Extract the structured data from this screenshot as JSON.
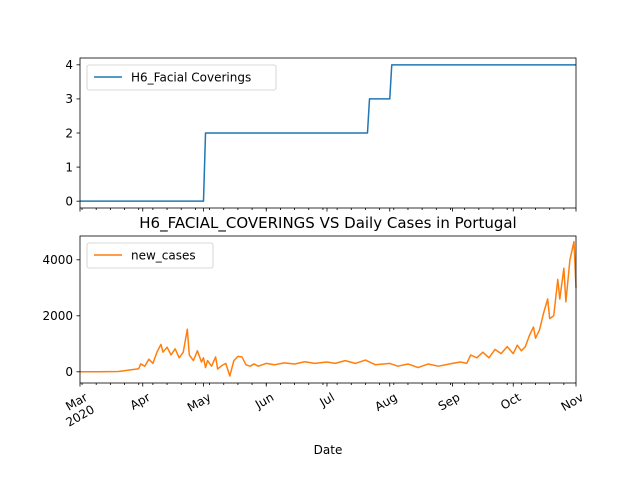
{
  "chart_data": [
    {
      "type": "line",
      "title": "",
      "xlabel": "",
      "ylabel": "",
      "x_range": [
        "2020-03-01",
        "2020-11-01"
      ],
      "ylim": [
        -0.2,
        4.2
      ],
      "yticks": [
        0,
        1,
        2,
        3,
        4
      ],
      "yticklabels": [
        "0",
        "1",
        "2",
        "3",
        "4"
      ],
      "legend_position": "upper left",
      "series": [
        {
          "name": "H6_Facial Coverings",
          "color": "#1f77b4",
          "step": true,
          "points": [
            [
              "2020-03-01",
              0
            ],
            [
              "2020-05-01",
              0
            ],
            [
              "2020-05-02",
              2
            ],
            [
              "2020-07-21",
              2
            ],
            [
              "2020-07-22",
              3
            ],
            [
              "2020-08-01",
              3
            ],
            [
              "2020-08-02",
              4
            ],
            [
              "2020-11-01",
              4
            ]
          ]
        }
      ]
    },
    {
      "type": "line",
      "title": "H6_FACIAL_COVERINGS VS Daily Cases in Portugal",
      "xlabel": "Date",
      "ylabel": "",
      "x_range": [
        "2020-03-01",
        "2020-11-01"
      ],
      "ylim": [
        -400,
        4850
      ],
      "yticks": [
        0,
        2000,
        4000
      ],
      "yticklabels": [
        "0",
        "2000",
        "4000"
      ],
      "legend_position": "upper left",
      "xtick_labels": [
        {
          "date": "2020-03-01",
          "label": "Mar",
          "sublabel": "2020"
        },
        {
          "date": "2020-04-01",
          "label": "Apr",
          "sublabel": ""
        },
        {
          "date": "2020-05-01",
          "label": "May",
          "sublabel": ""
        },
        {
          "date": "2020-06-01",
          "label": "Jun",
          "sublabel": ""
        },
        {
          "date": "2020-07-01",
          "label": "Jul",
          "sublabel": ""
        },
        {
          "date": "2020-08-01",
          "label": "Aug",
          "sublabel": ""
        },
        {
          "date": "2020-09-01",
          "label": "Sep",
          "sublabel": ""
        },
        {
          "date": "2020-10-01",
          "label": "Oct",
          "sublabel": ""
        },
        {
          "date": "2020-11-01",
          "label": "Nov",
          "sublabel": ""
        }
      ],
      "series": [
        {
          "name": "new_cases",
          "color": "#ff7f0e",
          "points": [
            [
              "2020-03-01",
              0
            ],
            [
              "2020-03-10",
              0
            ],
            [
              "2020-03-20",
              10
            ],
            [
              "2020-03-25",
              60
            ],
            [
              "2020-03-30",
              110
            ],
            [
              "2020-03-31",
              280
            ],
            [
              "2020-04-02",
              200
            ],
            [
              "2020-04-04",
              450
            ],
            [
              "2020-04-06",
              300
            ],
            [
              "2020-04-08",
              700
            ],
            [
              "2020-04-10",
              980
            ],
            [
              "2020-04-11",
              700
            ],
            [
              "2020-04-13",
              880
            ],
            [
              "2020-04-15",
              600
            ],
            [
              "2020-04-17",
              820
            ],
            [
              "2020-04-19",
              500
            ],
            [
              "2020-04-21",
              700
            ],
            [
              "2020-04-23",
              1520
            ],
            [
              "2020-04-24",
              600
            ],
            [
              "2020-04-26",
              400
            ],
            [
              "2020-04-28",
              750
            ],
            [
              "2020-04-30",
              350
            ],
            [
              "2020-05-01",
              500
            ],
            [
              "2020-05-02",
              150
            ],
            [
              "2020-05-03",
              400
            ],
            [
              "2020-05-05",
              200
            ],
            [
              "2020-05-07",
              530
            ],
            [
              "2020-05-08",
              100
            ],
            [
              "2020-05-10",
              220
            ],
            [
              "2020-05-12",
              300
            ],
            [
              "2020-05-14",
              -150
            ],
            [
              "2020-05-16",
              400
            ],
            [
              "2020-05-18",
              550
            ],
            [
              "2020-05-20",
              530
            ],
            [
              "2020-05-22",
              250
            ],
            [
              "2020-05-24",
              200
            ],
            [
              "2020-05-26",
              280
            ],
            [
              "2020-05-28",
              200
            ],
            [
              "2020-06-01",
              300
            ],
            [
              "2020-06-05",
              250
            ],
            [
              "2020-06-10",
              320
            ],
            [
              "2020-06-15",
              280
            ],
            [
              "2020-06-20",
              360
            ],
            [
              "2020-06-25",
              300
            ],
            [
              "2020-07-01",
              350
            ],
            [
              "2020-07-05",
              300
            ],
            [
              "2020-07-10",
              400
            ],
            [
              "2020-07-15",
              300
            ],
            [
              "2020-07-20",
              420
            ],
            [
              "2020-07-25",
              250
            ],
            [
              "2020-08-01",
              300
            ],
            [
              "2020-08-05",
              200
            ],
            [
              "2020-08-10",
              280
            ],
            [
              "2020-08-15",
              150
            ],
            [
              "2020-08-20",
              280
            ],
            [
              "2020-08-25",
              200
            ],
            [
              "2020-09-01",
              300
            ],
            [
              "2020-09-05",
              350
            ],
            [
              "2020-09-08",
              300
            ],
            [
              "2020-09-10",
              600
            ],
            [
              "2020-09-13",
              500
            ],
            [
              "2020-09-16",
              700
            ],
            [
              "2020-09-19",
              500
            ],
            [
              "2020-09-22",
              800
            ],
            [
              "2020-09-25",
              650
            ],
            [
              "2020-09-28",
              900
            ],
            [
              "2020-10-01",
              650
            ],
            [
              "2020-10-03",
              950
            ],
            [
              "2020-10-05",
              750
            ],
            [
              "2020-10-07",
              900
            ],
            [
              "2020-10-09",
              1300
            ],
            [
              "2020-10-11",
              1600
            ],
            [
              "2020-10-12",
              1200
            ],
            [
              "2020-10-14",
              1500
            ],
            [
              "2020-10-16",
              2100
            ],
            [
              "2020-10-18",
              2600
            ],
            [
              "2020-10-19",
              1900
            ],
            [
              "2020-10-21",
              2000
            ],
            [
              "2020-10-23",
              3300
            ],
            [
              "2020-10-24",
              2600
            ],
            [
              "2020-10-26",
              3700
            ],
            [
              "2020-10-27",
              2500
            ],
            [
              "2020-10-29",
              4000
            ],
            [
              "2020-10-31",
              4650
            ],
            [
              "2020-11-01",
              3000
            ]
          ]
        }
      ]
    }
  ]
}
